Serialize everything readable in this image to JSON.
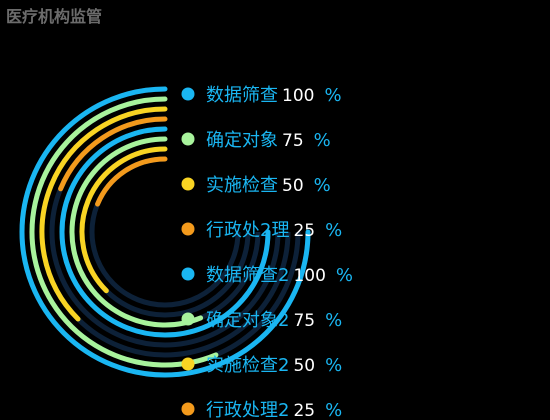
{
  "page": {
    "title": "医疗机构监管"
  },
  "chart_data": {
    "type": "radial-bar",
    "title": "",
    "max": 100,
    "unit": "%",
    "items": [
      {
        "name": "数据筛查",
        "value": 100,
        "color": "#1ab6f2"
      },
      {
        "name": "确定对象",
        "value": 75,
        "color": "#a8f39c"
      },
      {
        "name": "实施检查",
        "value": 50,
        "color": "#f9d423"
      },
      {
        "name": "行政处2理",
        "value": 25,
        "color": "#f39a1c"
      },
      {
        "name": "数据筛查2",
        "value": 100,
        "color": "#1ab6f2"
      },
      {
        "name": "确定对象2",
        "value": 75,
        "color": "#a8f39c"
      },
      {
        "name": "实施检查2",
        "value": 50,
        "color": "#f9d423"
      },
      {
        "name": "行政处理2",
        "value": 25,
        "color": "#f39a1c"
      }
    ],
    "track_color": "#0d2138",
    "label_color": "#1ab6f2"
  }
}
